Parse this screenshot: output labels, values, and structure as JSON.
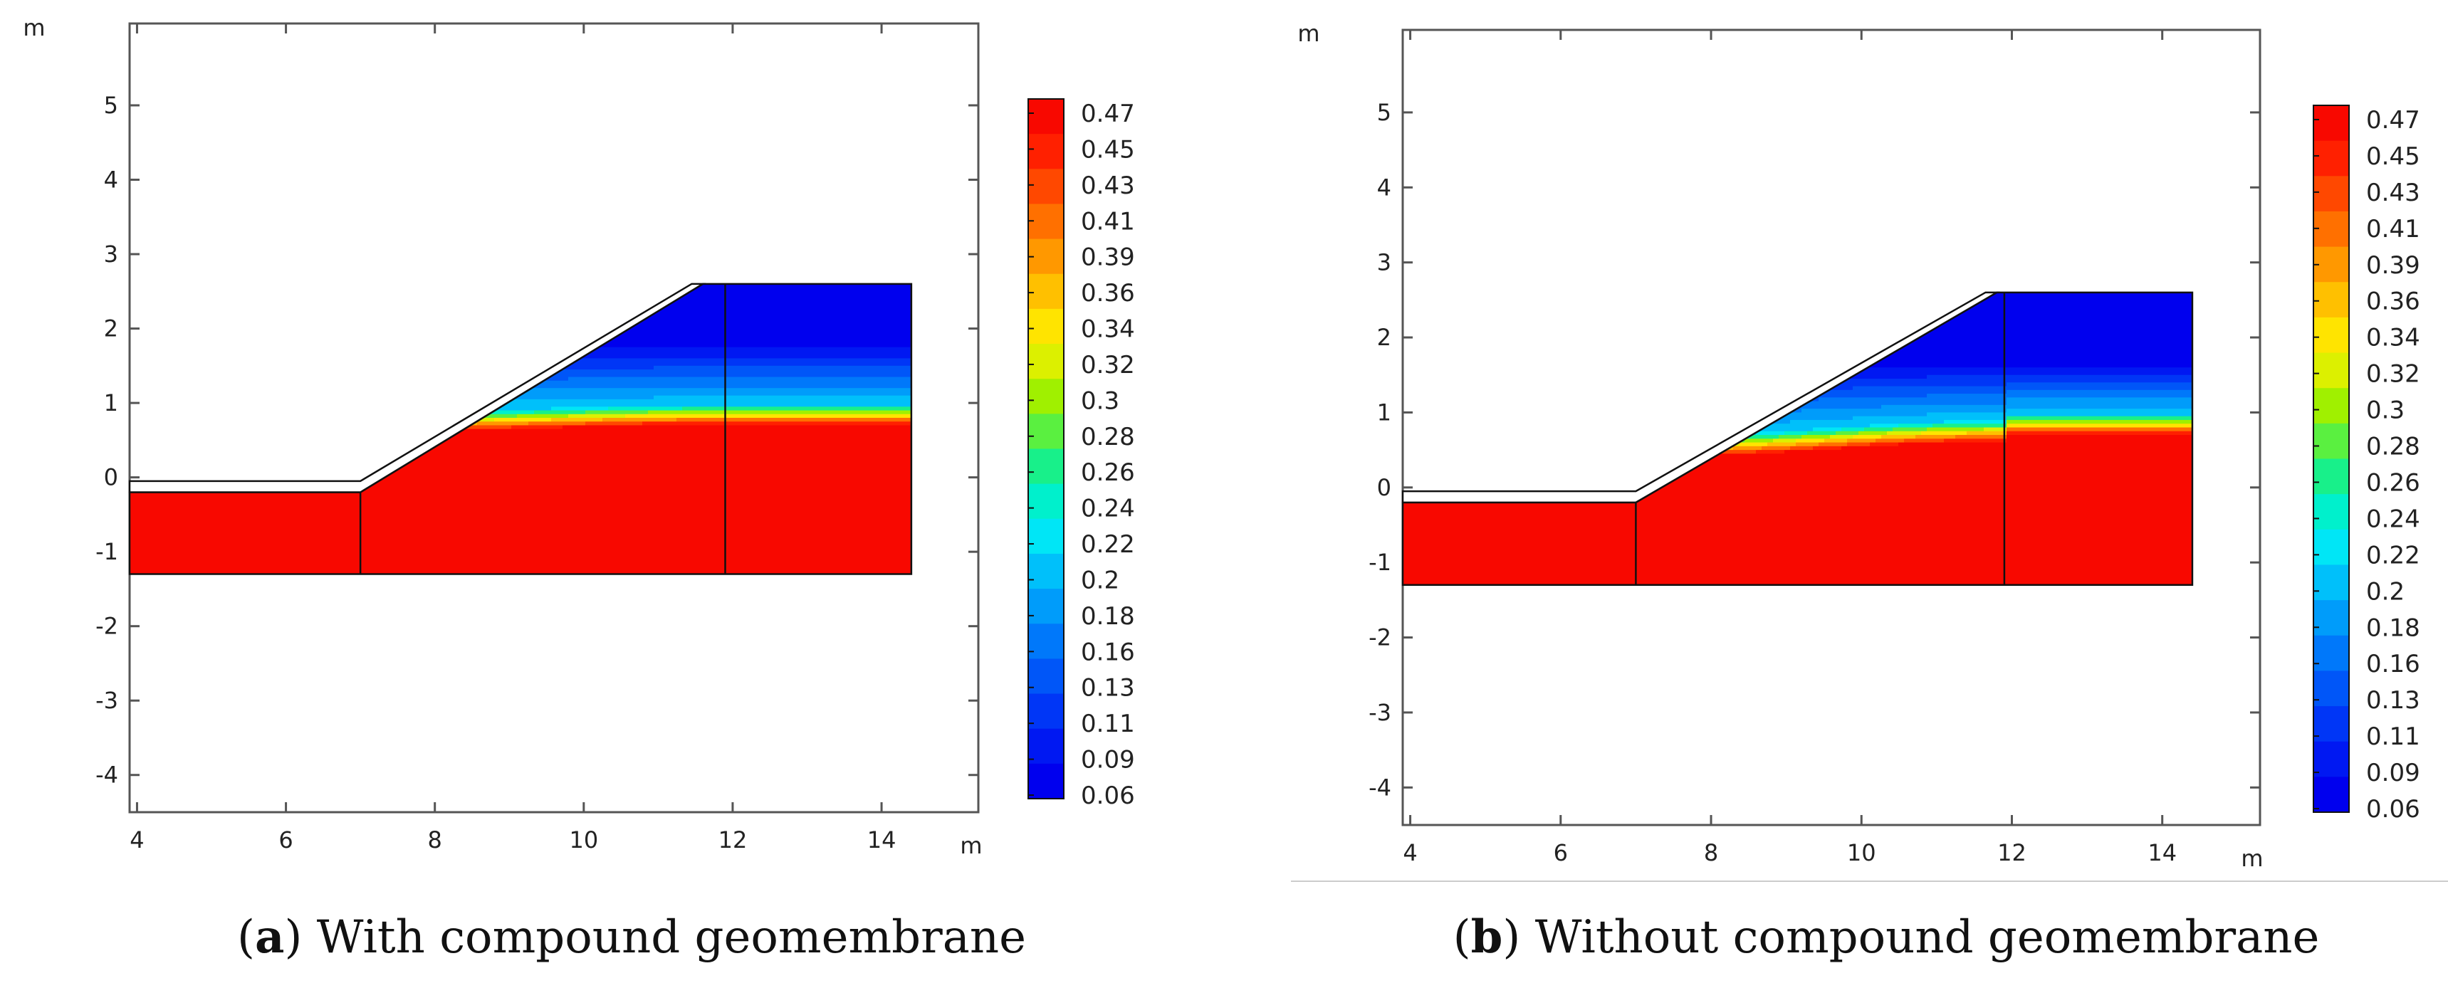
{
  "figure": {
    "separator_color": "#cccccc"
  },
  "colors": {
    "frame": "#555555",
    "outline": "#111111",
    "scale": [
      "#0000ee",
      "#0018f2",
      "#0036f6",
      "#0056f8",
      "#0078fa",
      "#009cfa",
      "#00c0fa",
      "#00e6f6",
      "#00f0cc",
      "#18f08a",
      "#5af040",
      "#a0f000",
      "#dcf000",
      "#ffe400",
      "#ffc000",
      "#ff9800",
      "#ff7000",
      "#ff4800",
      "#ff2000",
      "#f80800"
    ]
  },
  "chart_data": [
    {
      "type": "heatmap",
      "panel": "a",
      "caption": {
        "letter": "a",
        "open": "(",
        "close": ")",
        "text": " With compound geomembrane"
      },
      "axis_unit": "m",
      "xlim": [
        3.9,
        15.3
      ],
      "ylim": [
        -4.5,
        6.1
      ],
      "x_ticks": [
        4,
        6,
        8,
        10,
        12,
        14
      ],
      "y_ticks": [
        5,
        4,
        3,
        2,
        1,
        0,
        -1,
        -2,
        -3,
        -4
      ],
      "geometry": {
        "toe_x": 7.0,
        "crest_x": 11.6,
        "inner_x": 11.9,
        "right_x": 14.4,
        "bottom_y": -1.3,
        "base_top_y": -0.2,
        "crest_y": 2.6,
        "membrane_thickness": 0.15
      },
      "field": {
        "flat_wet_top": 0.72,
        "flat_band_top": 1.0,
        "slope_wet_lo": 0.62,
        "slope_wet_hi": 0.72,
        "slope_band_lo": 0.9,
        "slope_band_hi": 1.0,
        "fade_top": 1.9,
        "vmin": 0.06,
        "vmax": 0.47
      },
      "colorbar": {
        "ticks": [
          "0.47",
          "0.45",
          "0.43",
          "0.41",
          "0.39",
          "0.36",
          "0.34",
          "0.32",
          "0.3",
          "0.28",
          "0.26",
          "0.24",
          "0.22",
          "0.2",
          "0.18",
          "0.16",
          "0.13",
          "0.11",
          "0.09",
          "0.06"
        ],
        "min": 0.06,
        "max": 0.47
      }
    },
    {
      "type": "heatmap",
      "panel": "b",
      "caption": {
        "letter": "b",
        "open": "(",
        "close": ")",
        "text": " Without compound geomembrane"
      },
      "axis_unit": "m",
      "xlim": [
        3.9,
        15.3
      ],
      "ylim": [
        -4.5,
        6.1
      ],
      "x_ticks": [
        4,
        6,
        8,
        10,
        12,
        14
      ],
      "y_ticks": [
        5,
        4,
        3,
        2,
        1,
        0,
        -1,
        -2,
        -3,
        -4
      ],
      "geometry": {
        "toe_x": 7.0,
        "crest_x": 11.8,
        "inner_x": 11.9,
        "right_x": 14.4,
        "bottom_y": -1.3,
        "base_top_y": -0.2,
        "crest_y": 2.6,
        "membrane_thickness": 0.15
      },
      "field": {
        "flat_wet_top": 0.72,
        "flat_band_top": 1.0,
        "slope_wet_lo": 0.4,
        "slope_wet_hi": 0.62,
        "slope_band_lo": 0.7,
        "slope_band_hi": 0.92,
        "fade_top": 1.75,
        "vmin": 0.06,
        "vmax": 0.47
      },
      "colorbar": {
        "ticks": [
          "0.47",
          "0.45",
          "0.43",
          "0.41",
          "0.39",
          "0.36",
          "0.34",
          "0.32",
          "0.3",
          "0.28",
          "0.26",
          "0.24",
          "0.22",
          "0.2",
          "0.18",
          "0.16",
          "0.13",
          "0.11",
          "0.09",
          "0.06"
        ],
        "min": 0.06,
        "max": 0.47
      }
    }
  ]
}
